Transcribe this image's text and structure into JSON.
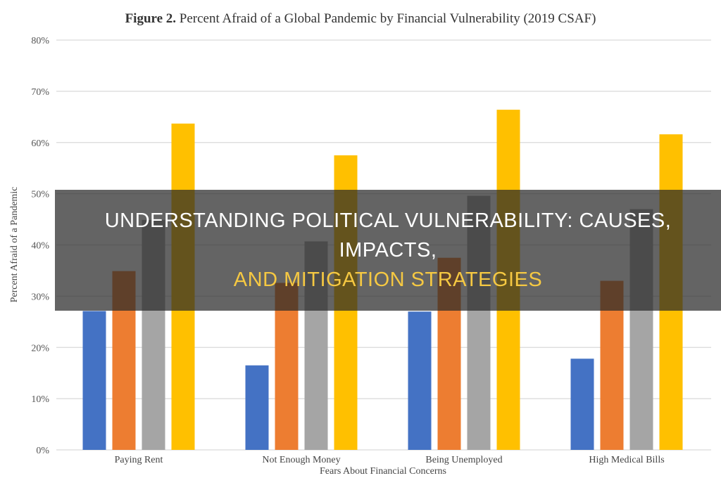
{
  "chart_data": {
    "type": "bar",
    "title_bold": "Figure 2.",
    "title": "Percent Afraid of a Global Pandemic by Financial Vulnerability (2019 CSAF)",
    "xlabel": "Fears About Financial Concerns",
    "ylabel": "Percent Afraid of a Pandemic",
    "ylim": [
      0,
      80
    ],
    "yticks": [
      "0%",
      "10%",
      "20%",
      "30%",
      "40%",
      "50%",
      "60%",
      "70%",
      "80%"
    ],
    "grid": true,
    "categories": [
      "Paying Rent",
      "Not Enough Money",
      "Being Unemployed",
      "High Medical Bills"
    ],
    "series": [
      {
        "color": "#4472c4",
        "values": [
          27.1,
          16.5,
          27.0,
          17.8
        ]
      },
      {
        "color": "#ed7d31",
        "values": [
          34.9,
          32.6,
          37.5,
          33.0
        ]
      },
      {
        "color": "#a5a5a5",
        "values": [
          44.9,
          40.7,
          49.6,
          47.0
        ]
      },
      {
        "color": "#ffc000",
        "values": [
          63.7,
          57.5,
          66.4,
          61.6
        ]
      }
    ]
  },
  "banner": {
    "line1": "UNDERSTANDING POLITICAL VULNERABILITY: CAUSES, IMPACTS,",
    "line2": "AND MITIGATION STRATEGIES"
  }
}
